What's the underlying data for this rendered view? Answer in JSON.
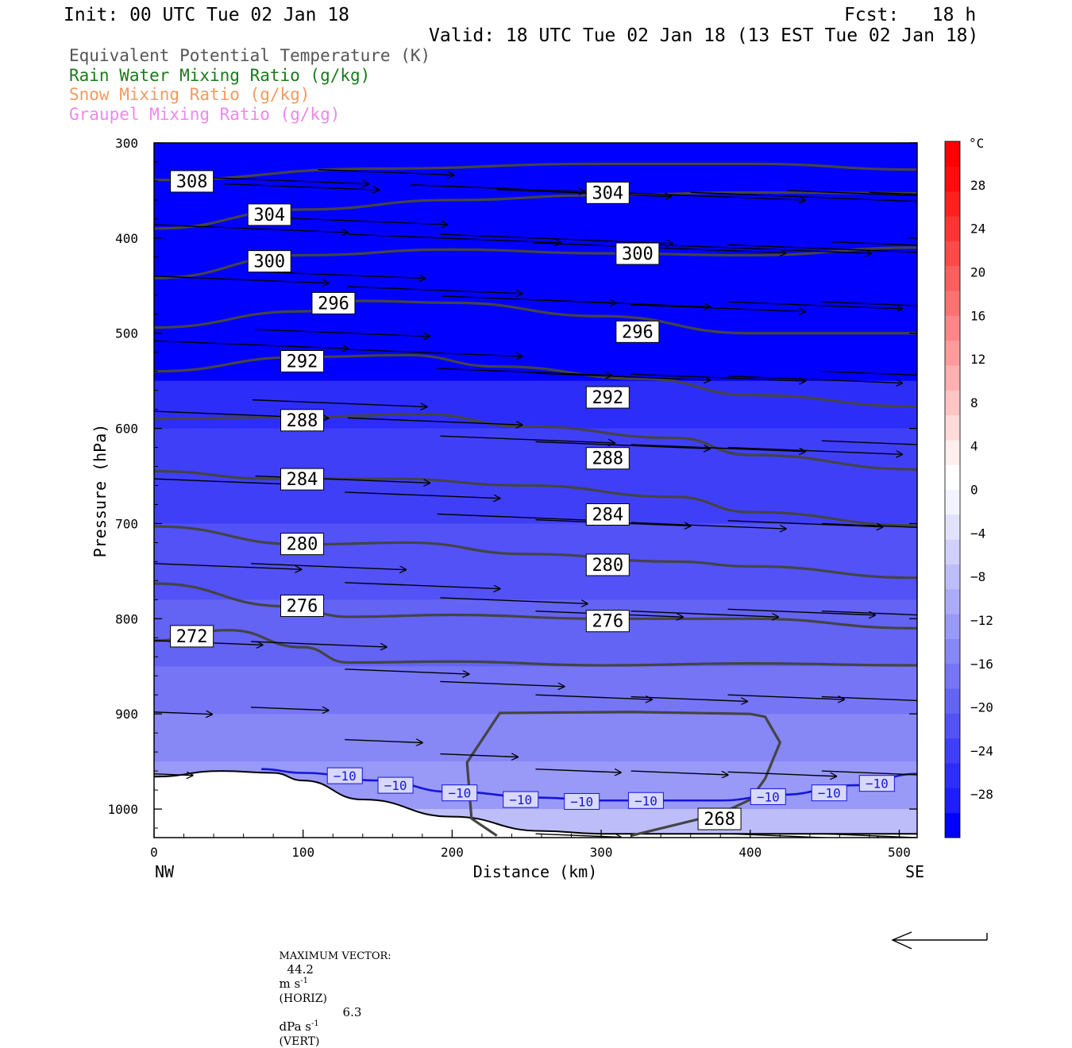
{
  "header": {
    "init": "Init: 00 UTC Tue 02 Jan 18",
    "fcst": "Fcst:   18 h",
    "valid": "Valid: 18 UTC Tue 02 Jan 18 (13 EST Tue 02 Jan 18)"
  },
  "fields": [
    {
      "label": "Equivalent Potential Temperature (K)",
      "color": "#555555"
    },
    {
      "label": "Rain Water Mixing Ratio (g/kg)",
      "color": "#1a7a1a"
    },
    {
      "label": "Snow Mixing Ratio (g/kg)",
      "color": "#f29a60"
    },
    {
      "label": "Graupel Mixing Ratio (g/kg)",
      "color": "#ee88ee"
    }
  ],
  "chart_data": {
    "type": "cross-section",
    "xlabel": "Distance (km)",
    "ylabel": "Pressure (hPa)",
    "x_end_labels": {
      "left": "NW",
      "right": "SE"
    },
    "xlim": [
      0,
      512
    ],
    "ylim": [
      300,
      1030
    ],
    "x_ticks": [
      0,
      100,
      200,
      300,
      400,
      500
    ],
    "y_ticks": [
      300,
      400,
      500,
      600,
      700,
      800,
      900,
      1000
    ],
    "colorbar": {
      "unit": "°C",
      "tick_labels": [
        "28",
        "24",
        "20",
        "16",
        "12",
        "8",
        "4",
        "0",
        "−4",
        "−8",
        "−12",
        "−16",
        "−20",
        "−24",
        "−28"
      ],
      "tick_values": [
        28,
        24,
        20,
        16,
        12,
        8,
        4,
        0,
        -4,
        -8,
        -12,
        -16,
        -20,
        -24,
        -28
      ],
      "range": [
        -32,
        32
      ],
      "colors": [
        "#0000ff",
        "#1e1efc",
        "#2d2dfa",
        "#3f3ff8",
        "#5252f6",
        "#6363f4",
        "#7575f5",
        "#8787f6",
        "#9999f7",
        "#ababf8",
        "#bdbdf9",
        "#d0d0fb",
        "#e2e2fd",
        "#f3f3ff",
        "#ffffff",
        "#ffeeee",
        "#ffdada",
        "#ffc4c4",
        "#ffb0b0",
        "#ff9b9b",
        "#ff8686",
        "#ff7272",
        "#ff5e5e",
        "#ff4a4a",
        "#ff3535",
        "#ff2020",
        "#ff0d0d",
        "#ff0000"
      ]
    },
    "temperature_fill": {
      "note_colors_by_pressure": "shaded temperature, colder aloft",
      "bands": [
        {
          "p": 300,
          "t": -31
        },
        {
          "p": 500,
          "t": -30
        },
        {
          "p": 550,
          "t": -27
        },
        {
          "p": 600,
          "t": -25
        },
        {
          "p": 650,
          "t": -23
        },
        {
          "p": 700,
          "t": -21
        },
        {
          "p": 780,
          "t": -19
        },
        {
          "p": 850,
          "t": -17
        },
        {
          "p": 900,
          "t": -15
        },
        {
          "p": 950,
          "t": -12
        },
        {
          "p": 1000,
          "t": -9
        },
        {
          "p": 1030,
          "t": -7
        }
      ]
    },
    "theta_e_contours": [
      {
        "label": "308",
        "points": [
          [
            0,
            339
          ],
          [
            150,
            327
          ],
          [
            300,
            322
          ],
          [
            400,
            322
          ],
          [
            512,
            328
          ]
        ],
        "labels_at": [
          [
            11,
            340
          ]
        ]
      },
      {
        "label": "304",
        "points": [
          [
            0,
            390
          ],
          [
            100,
            370
          ],
          [
            200,
            360
          ],
          [
            300,
            355
          ],
          [
            400,
            352
          ],
          [
            512,
            353
          ]
        ],
        "labels_at": [
          [
            63,
            375
          ],
          [
            290,
            352
          ]
        ]
      },
      {
        "label": "300",
        "points": [
          [
            0,
            442
          ],
          [
            100,
            418
          ],
          [
            200,
            412
          ],
          [
            300,
            416
          ],
          [
            400,
            418
          ],
          [
            512,
            410
          ]
        ],
        "labels_at": [
          [
            63,
            424
          ],
          [
            310,
            416
          ]
        ]
      },
      {
        "label": "296",
        "points": [
          [
            0,
            494
          ],
          [
            100,
            477
          ],
          [
            140,
            466
          ],
          [
            200,
            468
          ],
          [
            300,
            482
          ],
          [
            400,
            500
          ],
          [
            512,
            500
          ]
        ],
        "labels_at": [
          [
            106,
            468
          ],
          [
            310,
            498
          ]
        ]
      },
      {
        "label": "292",
        "points": [
          [
            0,
            540
          ],
          [
            100,
            525
          ],
          [
            170,
            523
          ],
          [
            230,
            535
          ],
          [
            330,
            548
          ],
          [
            400,
            565
          ],
          [
            512,
            577
          ]
        ],
        "labels_at": [
          [
            85,
            529
          ],
          [
            290,
            567
          ]
        ]
      },
      {
        "label": "288",
        "points": [
          [
            0,
            590
          ],
          [
            100,
            588
          ],
          [
            180,
            585
          ],
          [
            250,
            598
          ],
          [
            350,
            610
          ],
          [
            400,
            628
          ],
          [
            512,
            643
          ]
        ],
        "labels_at": [
          [
            85,
            591
          ],
          [
            290,
            631
          ]
        ]
      },
      {
        "label": "284",
        "points": [
          [
            0,
            645
          ],
          [
            80,
            653
          ],
          [
            160,
            653
          ],
          [
            250,
            660
          ],
          [
            350,
            672
          ],
          [
            400,
            688
          ],
          [
            512,
            702
          ]
        ],
        "labels_at": [
          [
            85,
            653
          ],
          [
            290,
            690
          ]
        ]
      },
      {
        "label": "280",
        "points": [
          [
            0,
            703
          ],
          [
            100,
            722
          ],
          [
            170,
            720
          ],
          [
            250,
            732
          ],
          [
            350,
            740
          ],
          [
            400,
            745
          ],
          [
            512,
            757
          ]
        ],
        "labels_at": [
          [
            85,
            721
          ],
          [
            290,
            743
          ]
        ]
      },
      {
        "label": "276",
        "points": [
          [
            0,
            763
          ],
          [
            90,
            787
          ],
          [
            130,
            798
          ],
          [
            200,
            796
          ],
          [
            300,
            800
          ],
          [
            400,
            800
          ],
          [
            512,
            810
          ]
        ],
        "labels_at": [
          [
            85,
            786
          ],
          [
            290,
            802
          ]
        ]
      },
      {
        "label": "272",
        "points": [
          [
            0,
            823
          ],
          [
            50,
            812
          ],
          [
            100,
            830
          ],
          [
            130,
            846
          ],
          [
            200,
            845
          ],
          [
            300,
            849
          ],
          [
            400,
            847
          ],
          [
            512,
            849
          ]
        ],
        "labels_at": [
          [
            11,
            818
          ]
        ]
      },
      {
        "label": "268",
        "closed": true,
        "points": [
          [
            230,
            1028
          ],
          [
            213,
            1010
          ],
          [
            210,
            951
          ],
          [
            232,
            899
          ],
          [
            320,
            898
          ],
          [
            400,
            900
          ],
          [
            410,
            903
          ],
          [
            420,
            930
          ],
          [
            410,
            968
          ],
          [
            400,
            990
          ],
          [
            380,
            1005
          ],
          [
            320,
            1028
          ]
        ],
        "labels_at": [
          [
            365,
            1010
          ]
        ]
      }
    ],
    "isotherm_minus10": {
      "label": "−10",
      "color": "#1515d8",
      "points": [
        [
          72,
          958
        ],
        [
          100,
          962
        ],
        [
          150,
          970
        ],
        [
          200,
          982
        ],
        [
          260,
          988
        ],
        [
          300,
          991
        ],
        [
          380,
          991
        ],
        [
          420,
          985
        ],
        [
          470,
          975
        ],
        [
          512,
          963
        ]
      ],
      "labels_at": [
        [
          128,
          965
        ],
        [
          162,
          975
        ],
        [
          205,
          983
        ],
        [
          246,
          990
        ],
        [
          287,
          992
        ],
        [
          330,
          991
        ],
        [
          412,
          987
        ],
        [
          453,
          983
        ],
        [
          485,
          973
        ]
      ]
    },
    "terrain": {
      "points": [
        [
          0,
          966
        ],
        [
          45,
          960
        ],
        [
          80,
          962
        ],
        [
          100,
          970
        ],
        [
          140,
          990
        ],
        [
          200,
          1008
        ],
        [
          260,
          1023
        ],
        [
          300,
          1026
        ],
        [
          400,
          1026
        ],
        [
          512,
          1026
        ]
      ]
    },
    "wind_vectors": {
      "max_horizontal": "44.2",
      "max_vertical": "6.3",
      "arrows": [
        {
          "p": 335,
          "x": 14,
          "len": 50
        },
        {
          "p": 343,
          "x": 47,
          "len": 40
        },
        {
          "p": 328,
          "x": 110,
          "len": 35
        },
        {
          "p": 344,
          "x": 172,
          "len": 45
        },
        {
          "p": 349,
          "x": 230,
          "len": 45
        },
        {
          "p": 352,
          "x": 307,
          "len": 50
        },
        {
          "p": 352,
          "x": 360,
          "len": 60
        },
        {
          "p": 350,
          "x": 425,
          "len": 60
        },
        {
          "p": 352,
          "x": 480,
          "len": 40
        },
        {
          "p": 386,
          "x": 0,
          "len": 50
        },
        {
          "p": 378,
          "x": 72,
          "len": 48
        },
        {
          "p": 396,
          "x": 130,
          "len": 55
        },
        {
          "p": 396,
          "x": 192,
          "len": 60
        },
        {
          "p": 405,
          "x": 255,
          "len": 65
        },
        {
          "p": 406,
          "x": 320,
          "len": 62
        },
        {
          "p": 407,
          "x": 385,
          "len": 52
        },
        {
          "p": 404,
          "x": 455,
          "len": 48
        },
        {
          "p": 440,
          "x": 0,
          "len": 45
        },
        {
          "p": 435,
          "x": 65,
          "len": 45
        },
        {
          "p": 451,
          "x": 130,
          "len": 45
        },
        {
          "p": 461,
          "x": 193,
          "len": 45
        },
        {
          "p": 465,
          "x": 256,
          "len": 45
        },
        {
          "p": 470,
          "x": 320,
          "len": 45
        },
        {
          "p": 467,
          "x": 385,
          "len": 45
        },
        {
          "p": 467,
          "x": 448,
          "len": 40
        },
        {
          "p": 508,
          "x": 0,
          "len": 50
        },
        {
          "p": 496,
          "x": 68,
          "len": 45
        },
        {
          "p": 517,
          "x": 130,
          "len": 45
        },
        {
          "p": 537,
          "x": 190,
          "len": 45
        },
        {
          "p": 542,
          "x": 256,
          "len": 45
        },
        {
          "p": 543,
          "x": 320,
          "len": 45
        },
        {
          "p": 545,
          "x": 385,
          "len": 45
        },
        {
          "p": 540,
          "x": 448,
          "len": 40
        },
        {
          "p": 582,
          "x": 0,
          "len": 45
        },
        {
          "p": 570,
          "x": 66,
          "len": 45
        },
        {
          "p": 589,
          "x": 130,
          "len": 45
        },
        {
          "p": 608,
          "x": 192,
          "len": 45
        },
        {
          "p": 614,
          "x": 256,
          "len": 45
        },
        {
          "p": 617,
          "x": 320,
          "len": 45
        },
        {
          "p": 620,
          "x": 385,
          "len": 45
        },
        {
          "p": 613,
          "x": 448,
          "len": 40
        },
        {
          "p": 653,
          "x": 0,
          "len": 40
        },
        {
          "p": 650,
          "x": 68,
          "len": 45
        },
        {
          "p": 667,
          "x": 128,
          "len": 40
        },
        {
          "p": 690,
          "x": 190,
          "len": 40
        },
        {
          "p": 696,
          "x": 256,
          "len": 40
        },
        {
          "p": 699,
          "x": 320,
          "len": 40
        },
        {
          "p": 697,
          "x": 385,
          "len": 40
        },
        {
          "p": 700,
          "x": 448,
          "len": 40
        },
        {
          "p": 742,
          "x": 0,
          "len": 38
        },
        {
          "p": 742,
          "x": 65,
          "len": 40
        },
        {
          "p": 762,
          "x": 128,
          "len": 40
        },
        {
          "p": 778,
          "x": 192,
          "len": 38
        },
        {
          "p": 792,
          "x": 256,
          "len": 38
        },
        {
          "p": 792,
          "x": 320,
          "len": 38
        },
        {
          "p": 790,
          "x": 385,
          "len": 38
        },
        {
          "p": 792,
          "x": 448,
          "len": 38
        },
        {
          "p": 823,
          "x": 0,
          "len": 28
        },
        {
          "p": 824,
          "x": 65,
          "len": 35
        },
        {
          "p": 853,
          "x": 128,
          "len": 32
        },
        {
          "p": 866,
          "x": 192,
          "len": 32
        },
        {
          "p": 880,
          "x": 256,
          "len": 30
        },
        {
          "p": 882,
          "x": 320,
          "len": 30
        },
        {
          "p": 880,
          "x": 385,
          "len": 30
        },
        {
          "p": 882,
          "x": 448,
          "len": 30
        },
        {
          "p": 898,
          "x": 0,
          "len": 15
        },
        {
          "p": 893,
          "x": 65,
          "len": 20
        },
        {
          "p": 927,
          "x": 128,
          "len": 20
        },
        {
          "p": 942,
          "x": 192,
          "len": 20
        },
        {
          "p": 958,
          "x": 256,
          "len": 22
        },
        {
          "p": 960,
          "x": 320,
          "len": 25
        },
        {
          "p": 961,
          "x": 385,
          "len": 28
        },
        {
          "p": 960,
          "x": 448,
          "len": 30
        },
        {
          "p": 963,
          "x": 0,
          "len": 10
        },
        {
          "p": 1026,
          "x": 256,
          "len": 22
        },
        {
          "p": 1026,
          "x": 385,
          "len": 40
        },
        {
          "p": 1026,
          "x": 448,
          "len": 45
        }
      ]
    }
  },
  "colorbar_unit": "°C",
  "footer": {
    "max_vector_label": "MAXIMUM VECTOR:",
    "horiz_value": "44.2",
    "horiz_unit": "m s",
    "horiz_exp": "-1",
    "horiz_tag": "(HORIZ)",
    "vert_value": "6.3",
    "vert_unit": "dPa s",
    "vert_exp": "-1",
    "vert_tag": "(VERT)"
  }
}
